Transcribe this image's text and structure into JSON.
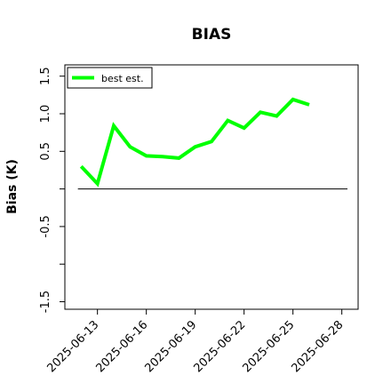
{
  "chart_data": {
    "type": "line",
    "title": "BIAS",
    "xlabel": "",
    "ylabel": "Bias (K)",
    "x_ticks": [
      "2025-06-13",
      "2025-06-16",
      "2025-06-19",
      "2025-06-22",
      "2025-06-25",
      "2025-06-28"
    ],
    "y_ticks": [
      "-1.5",
      "-1.0",
      "-0.5",
      "0.0",
      "0.5",
      "1.0",
      "1.5"
    ],
    "y_tick_labels_shown": [
      "-1.5",
      "-0.5",
      "0.5",
      "1.0",
      "1.5"
    ],
    "ylim": [
      -1.6,
      1.65
    ],
    "xlim": [
      "2025-06-11",
      "2025-06-29"
    ],
    "grid": false,
    "legend_position": "top-left",
    "reference_line": {
      "y": 0.0,
      "x_start": "2025-06-11.8",
      "x_end": "2025-06-29"
    },
    "series": [
      {
        "name": "best est.",
        "color": "#00ff00",
        "x": [
          "2025-06-12",
          "2025-06-13",
          "2025-06-14",
          "2025-06-15",
          "2025-06-16",
          "2025-06-17",
          "2025-06-18",
          "2025-06-19",
          "2025-06-20",
          "2025-06-21",
          "2025-06-22",
          "2025-06-23",
          "2025-06-24",
          "2025-06-25",
          "2025-06-26"
        ],
        "values": [
          0.3,
          0.07,
          0.84,
          0.56,
          0.44,
          0.43,
          0.41,
          0.56,
          0.63,
          0.91,
          0.81,
          1.02,
          0.97,
          1.19,
          1.12
        ]
      }
    ]
  }
}
